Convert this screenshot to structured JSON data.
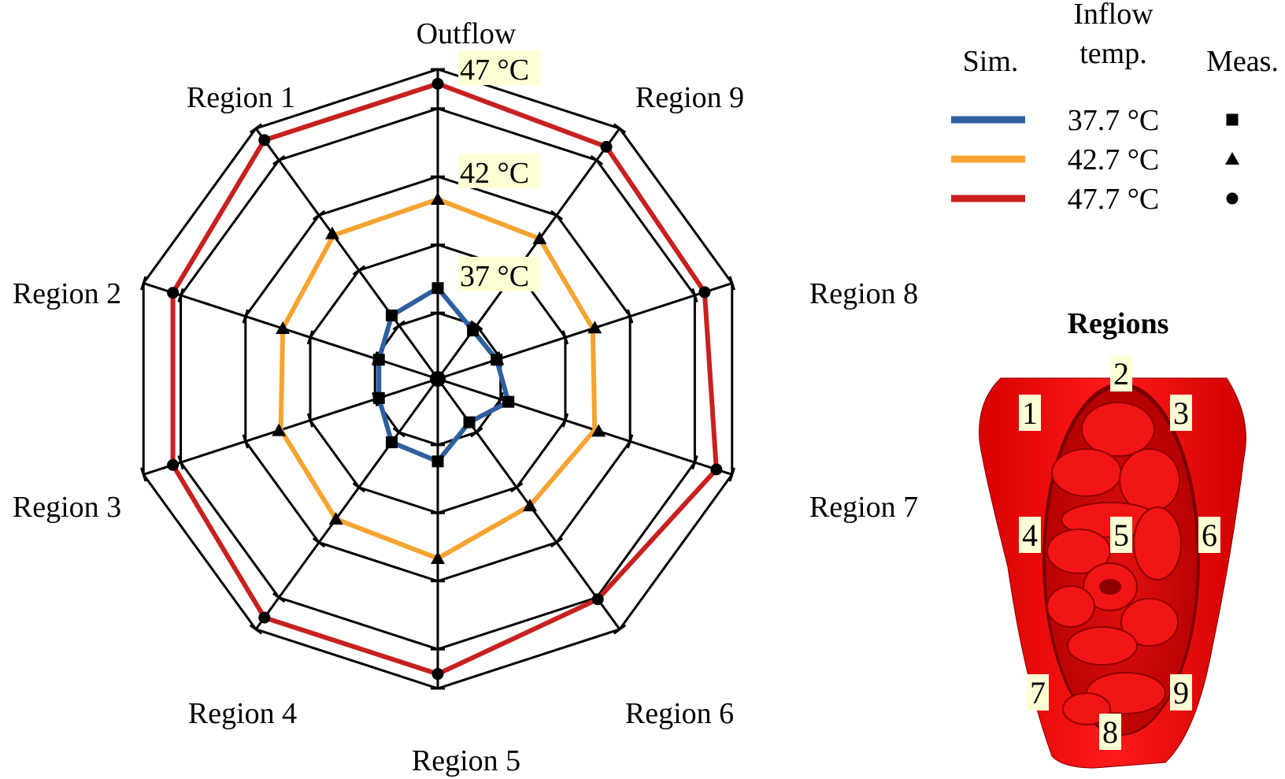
{
  "chart_data": {
    "type": "radar",
    "axes": [
      "Outflow",
      "Region 9",
      "Region 8",
      "Region 7",
      "Region 6",
      "Region 5",
      "Region 4",
      "Region 3",
      "Region 2",
      "Region 1"
    ],
    "rlim": [
      32,
      47
    ],
    "grid_levels": [
      32,
      37,
      42,
      47
    ],
    "grid_ring_values": [
      35.2,
      38.5,
      41.8,
      45.1
    ],
    "tick_labels": [
      "37 °C",
      "42 °C",
      "47 °C"
    ],
    "tick_values": [
      37,
      42,
      47
    ],
    "legend": {
      "sim_header": "Sim.",
      "inflow_header": "Inflow temp.",
      "meas_header": "Meas.",
      "placement": "top-right"
    },
    "series": [
      {
        "name": "37.7 °C",
        "color": "#2e5f9e",
        "marker": "square",
        "sim": [
          36.4,
          34.9,
          35.0,
          35.6,
          34.6,
          36.0,
          35.8,
          35.0,
          35.0,
          35.8
        ],
        "meas": [
          36.4,
          34.9,
          35.0,
          35.6,
          34.6,
          36.0,
          35.8,
          35.0,
          35.0,
          35.8
        ]
      },
      {
        "name": "42.7 °C",
        "color": "#f6a331",
        "marker": "triangle",
        "sim": [
          40.7,
          40.4,
          39.9,
          40.0,
          39.6,
          40.7,
          40.4,
          40.0,
          39.9,
          40.6
        ],
        "meas": [
          40.7,
          40.4,
          40.0,
          40.2,
          39.6,
          40.7,
          40.4,
          40.1,
          39.9,
          40.7
        ]
      },
      {
        "name": "47.7 °C",
        "color": "#c8201f",
        "marker": "circle",
        "sim": [
          46.3,
          45.9,
          45.6,
          46.2,
          45.2,
          46.3,
          46.3,
          45.5,
          45.5,
          46.3
        ],
        "meas": [
          46.3,
          45.9,
          45.6,
          46.2,
          45.2,
          46.3,
          46.3,
          45.5,
          45.5,
          46.3
        ]
      }
    ]
  },
  "regions_panel": {
    "title": "Regions",
    "labels": [
      "1",
      "2",
      "3",
      "4",
      "5",
      "6",
      "7",
      "8",
      "9"
    ]
  }
}
